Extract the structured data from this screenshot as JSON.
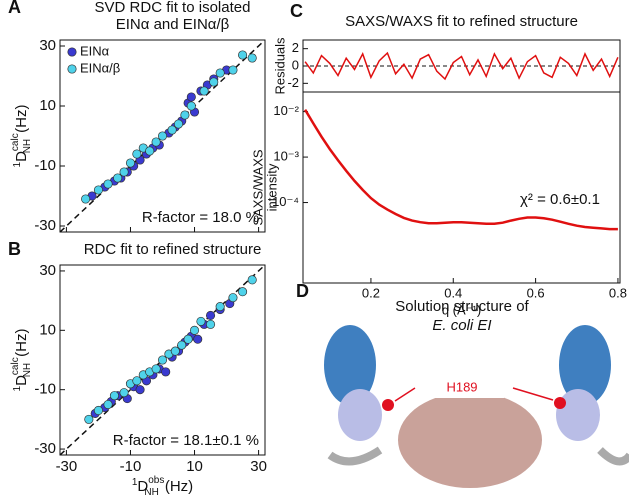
{
  "chart_data": [
    {
      "type": "scatter",
      "panel": "A",
      "title": [
        "SVD RDC fit to isolated",
        "EINα and EINα/β"
      ],
      "legend": true,
      "y_label": {
        "pre": "1",
        "main": "D",
        "sub": "NH",
        "sup": "calc",
        "unit": "(Hz)"
      },
      "xlim": [
        -32,
        32
      ],
      "ylim": [
        -32,
        32
      ],
      "xticks": [
        -30,
        -10,
        10,
        30
      ],
      "yticks": [
        -30,
        -10,
        10,
        30
      ],
      "annotation": "R-factor = 18.0 %",
      "series": [
        {
          "name": "EINα",
          "color": "#3a3ad0",
          "x": [
            -22,
            -18,
            -15,
            -13,
            -11,
            -9,
            -7,
            -5,
            -3,
            -1,
            2,
            4,
            6,
            8,
            9,
            10,
            12,
            14,
            16,
            20
          ],
          "y": [
            -20,
            -17,
            -15,
            -14,
            -12,
            -10,
            -8,
            -6,
            -4,
            -3,
            1,
            3,
            5,
            11,
            13,
            8,
            15,
            17,
            19,
            22
          ]
        },
        {
          "name": "EINα/β",
          "color": "#4fd2ea",
          "x": [
            -24,
            -20,
            -17,
            -14,
            -12,
            -10,
            -8,
            -6,
            -4,
            -2,
            0,
            3,
            5,
            7,
            9,
            13,
            16,
            18,
            22,
            25,
            28
          ],
          "y": [
            -21,
            -18,
            -16,
            -14,
            -12,
            -9,
            -6,
            -4,
            -5,
            -2,
            0,
            2,
            4,
            7,
            10,
            15,
            18,
            21,
            22,
            27,
            26
          ]
        }
      ]
    },
    {
      "type": "scatter",
      "panel": "B",
      "title": [
        "RDC fit to refined structure"
      ],
      "y_label": {
        "pre": "1",
        "main": "D",
        "sub": "NH",
        "sup": "calc",
        "unit": "(Hz)"
      },
      "x_label": {
        "pre": "1",
        "main": "D",
        "sub": "NH",
        "sup": "obs",
        "unit": "(Hz)"
      },
      "xlim": [
        -32,
        32
      ],
      "ylim": [
        -32,
        32
      ],
      "xticks": [
        -30,
        -10,
        10,
        30
      ],
      "yticks": [
        -30,
        -10,
        10,
        30
      ],
      "annotation": "R-factor = 18.1±0.1 %",
      "series": [
        {
          "color": "#3a3ad0",
          "x": [
            -21,
            -18,
            -16,
            -14,
            -11,
            -9,
            -7,
            -5,
            -3,
            -1,
            1,
            3,
            5,
            7,
            9,
            11,
            13,
            15,
            18,
            21
          ],
          "y": [
            -18,
            -16,
            -14,
            -12,
            -13,
            -9,
            -10,
            -7,
            -5,
            -3,
            -4,
            1,
            3,
            6,
            8,
            7,
            12,
            15,
            17,
            19
          ]
        },
        {
          "color": "#4fd2ea",
          "x": [
            -23,
            -20,
            -17,
            -15,
            -12,
            -10,
            -8,
            -6,
            -4,
            -2,
            0,
            2,
            4,
            6,
            8,
            10,
            12,
            15,
            18,
            22,
            25,
            28
          ],
          "y": [
            -20,
            -17,
            -15,
            -12,
            -11,
            -8,
            -7,
            -5,
            -4,
            -3,
            0,
            2,
            3,
            5,
            7,
            10,
            13,
            12,
            18,
            21,
            23,
            27
          ]
        }
      ]
    },
    {
      "type": "line",
      "panel": "C",
      "title": [
        "SAXS/WAXS fit to refined structure"
      ],
      "y_label": [
        "Residuals"
      ],
      "xlim": [
        0.035,
        0.805
      ],
      "ylim": [
        -3,
        3
      ],
      "yticks": [
        -2,
        0,
        2
      ],
      "x": [
        0.04,
        0.06,
        0.08,
        0.1,
        0.12,
        0.14,
        0.16,
        0.18,
        0.2,
        0.22,
        0.24,
        0.26,
        0.28,
        0.3,
        0.32,
        0.34,
        0.36,
        0.38,
        0.4,
        0.42,
        0.44,
        0.46,
        0.48,
        0.5,
        0.52,
        0.54,
        0.56,
        0.58,
        0.6,
        0.62,
        0.64,
        0.66,
        0.68,
        0.7,
        0.72,
        0.74,
        0.76,
        0.78,
        0.8
      ],
      "series": [
        {
          "color": "#e01010",
          "values": [
            0.5,
            -0.8,
            1.2,
            0.3,
            -1.1,
            0.9,
            -0.4,
            1.4,
            -1.3,
            0.6,
            1.5,
            -0.9,
            0.2,
            -1.4,
            0.8,
            1.3,
            -0.6,
            -1.5,
            0.4,
            1.1,
            -1,
            0.7,
            -1.2,
            1.4,
            -0.3,
            0.9,
            -1.4,
            0.5,
            1.2,
            -0.8,
            -1.3,
            1,
            0.3,
            -1.1,
            1.4,
            -0.5,
            0.8,
            -1.2,
            1
          ]
        }
      ]
    },
    {
      "type": "line",
      "y_label": [
        "SAXS/WAXS",
        "intensity"
      ],
      "x_label": "q (Å⁻¹)",
      "log_y": true,
      "xlim": [
        0.035,
        0.805
      ],
      "ylim": [
        1.7e-06,
        0.027
      ],
      "xticks": [
        0.2,
        0.4,
        0.6,
        0.8
      ],
      "yticks": [
        {
          "value": 0.0001,
          "label": "10⁻⁴"
        },
        {
          "value": 0.001,
          "label": "10⁻³"
        },
        {
          "value": 0.01,
          "label": "10⁻²"
        }
      ],
      "annotation": "χ² = 0.6±0.1",
      "x": [
        0.04,
        0.06,
        0.08,
        0.1,
        0.12,
        0.14,
        0.16,
        0.18,
        0.2,
        0.22,
        0.24,
        0.26,
        0.28,
        0.3,
        0.32,
        0.34,
        0.36,
        0.38,
        0.4,
        0.42,
        0.44,
        0.46,
        0.48,
        0.5,
        0.52,
        0.54,
        0.56,
        0.58,
        0.6,
        0.62,
        0.64,
        0.66,
        0.68,
        0.7,
        0.72,
        0.74,
        0.76,
        0.78,
        0.8
      ],
      "series": [
        {
          "color": "#e01010",
          "values": [
            0.011,
            0.0055,
            0.0028,
            0.0015,
            0.00085,
            0.0005,
            0.0003,
            0.00019,
            0.000125,
            9e-05,
            7e-05,
            5.6e-05,
            4.6e-05,
            4e-05,
            3.7e-05,
            3.5e-05,
            3.5e-05,
            3.6e-05,
            3.7e-05,
            3.7e-05,
            3.6e-05,
            3.5e-05,
            3.4e-05,
            3.4e-05,
            3.6e-05,
            4e-05,
            4.4e-05,
            4.7e-05,
            4.7e-05,
            4.5e-05,
            4.2e-05,
            3.8e-05,
            3.4e-05,
            3.1e-05,
            2.9e-05,
            2.8e-05,
            2.7e-05,
            2.6e-05,
            2.6e-05
          ]
        }
      ]
    }
  ],
  "panel_d": {
    "label": "D",
    "title": [
      "Solution structure of",
      "E. coli EI"
    ],
    "annotation": "H189"
  }
}
